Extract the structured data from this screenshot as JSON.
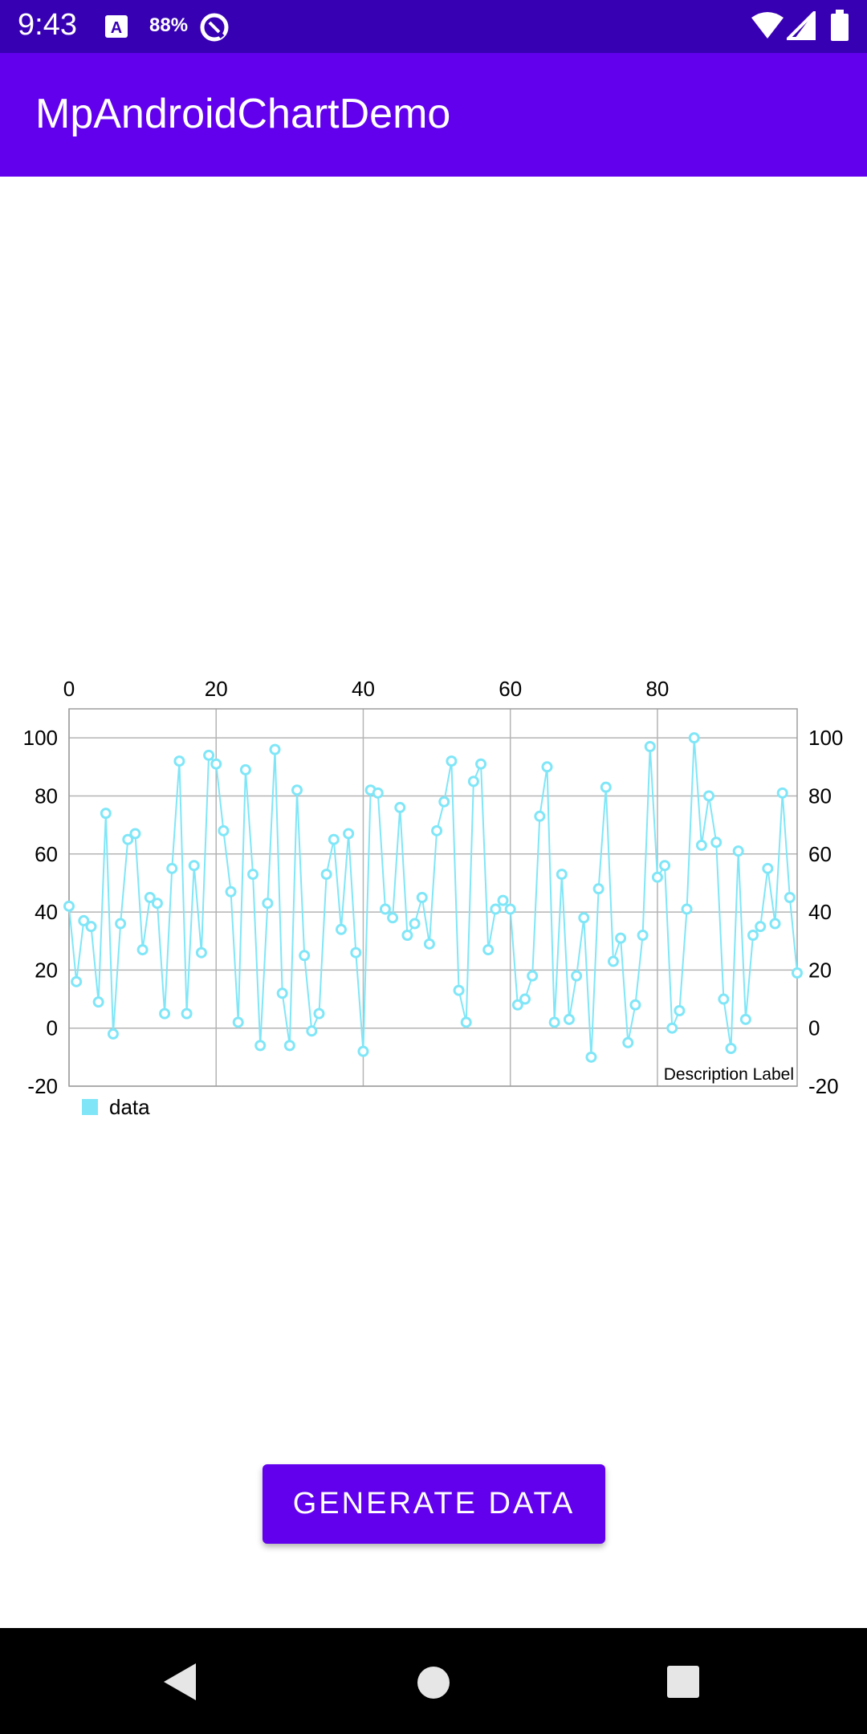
{
  "status_bar": {
    "time": "9:43",
    "battery_percent": "88%",
    "icons": [
      "notification-a-icon",
      "data-saver-icon",
      "wifi-icon",
      "signal-icon",
      "battery-icon"
    ]
  },
  "app_bar": {
    "title": "MpAndroidChartDemo",
    "color": "#6200ee"
  },
  "chart_data": {
    "type": "line",
    "x_start": 0,
    "x_step": 1,
    "values": [
      42,
      16,
      37,
      35,
      9,
      74,
      -2,
      36,
      65,
      67,
      27,
      45,
      43,
      5,
      55,
      92,
      5,
      56,
      26,
      94,
      91,
      68,
      47,
      2,
      89,
      53,
      -6,
      43,
      96,
      12,
      -6,
      82,
      25,
      -1,
      5,
      53,
      65,
      34,
      67,
      26,
      -8,
      82,
      81,
      41,
      38,
      76,
      32,
      36,
      45,
      29,
      68,
      78,
      92,
      13,
      2,
      85,
      91,
      27,
      41,
      44,
      41,
      8,
      10,
      18,
      73,
      90,
      2,
      53,
      3,
      18,
      38,
      -10,
      48,
      83,
      23,
      31,
      -5,
      8,
      32,
      97,
      52,
      56,
      0,
      6,
      41,
      100,
      63,
      80,
      64,
      10,
      -7,
      61,
      3,
      32,
      35,
      55,
      36,
      81,
      45,
      19
    ],
    "series": [
      {
        "name": "data",
        "color": "#80e6f7"
      }
    ],
    "xlim": [
      0,
      99
    ],
    "ylim": [
      -20,
      110
    ],
    "x_ticks": [
      0,
      20,
      40,
      60,
      80
    ],
    "y_ticks": [
      -20,
      0,
      20,
      40,
      60,
      80,
      100
    ],
    "x_axis_position": "top",
    "y_axis": "both",
    "grid": true,
    "legend_position": "bottom-left",
    "description": "Description Label"
  },
  "button": {
    "label": "GENERATE DATA",
    "color": "#6200ee"
  },
  "nav_bar": {
    "icons": [
      "back-icon",
      "home-icon",
      "recents-icon"
    ]
  }
}
